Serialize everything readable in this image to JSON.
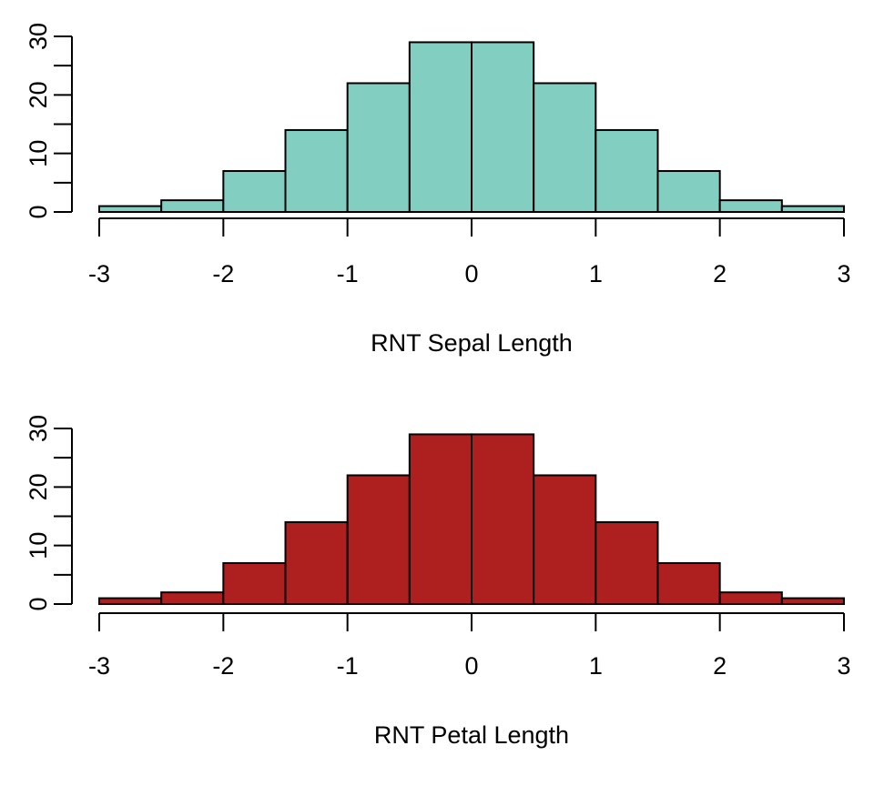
{
  "chart_data": [
    {
      "type": "bar",
      "subtype": "histogram",
      "bins": [
        [
          -3,
          -2.5
        ],
        [
          -2.5,
          -2
        ],
        [
          -2,
          -1.5
        ],
        [
          -1.5,
          -1
        ],
        [
          -1,
          -0.5
        ],
        [
          -0.5,
          0
        ],
        [
          0,
          0.5
        ],
        [
          0.5,
          1
        ],
        [
          1,
          1.5
        ],
        [
          1.5,
          2
        ],
        [
          2,
          2.5
        ],
        [
          2.5,
          3
        ]
      ],
      "values": [
        1,
        2,
        7,
        14,
        22,
        29,
        29,
        22,
        14,
        7,
        2,
        1
      ],
      "xlabel": "RNT Sepal Length",
      "ylabel": "",
      "xlim": [
        -3,
        3
      ],
      "ylim": [
        0,
        30
      ],
      "xticks": [
        "-3",
        "-2",
        "-1",
        "0",
        "1",
        "2",
        "3"
      ],
      "yticks": [
        "0",
        "10",
        "20",
        "30"
      ],
      "ytick_values": [
        0,
        10,
        20,
        30
      ],
      "yminor_ticks": [
        5,
        15,
        25
      ],
      "fill_color": "#82CFC2",
      "grid": false
    },
    {
      "type": "bar",
      "subtype": "histogram",
      "bins": [
        [
          -3,
          -2.5
        ],
        [
          -2.5,
          -2
        ],
        [
          -2,
          -1.5
        ],
        [
          -1.5,
          -1
        ],
        [
          -1,
          -0.5
        ],
        [
          -0.5,
          0
        ],
        [
          0,
          0.5
        ],
        [
          0.5,
          1
        ],
        [
          1,
          1.5
        ],
        [
          1.5,
          2
        ],
        [
          2,
          2.5
        ],
        [
          2.5,
          3
        ]
      ],
      "values": [
        1,
        2,
        7,
        14,
        22,
        29,
        29,
        22,
        14,
        7,
        2,
        1
      ],
      "xlabel": "RNT Petal Length",
      "ylabel": "",
      "xlim": [
        -3,
        3
      ],
      "ylim": [
        0,
        30
      ],
      "xticks": [
        "-3",
        "-2",
        "-1",
        "0",
        "1",
        "2",
        "3"
      ],
      "yticks": [
        "0",
        "10",
        "20",
        "30"
      ],
      "ytick_values": [
        0,
        10,
        20,
        30
      ],
      "yminor_ticks": [
        5,
        15,
        25
      ],
      "fill_color": "#AE1F1F",
      "grid": false
    }
  ]
}
